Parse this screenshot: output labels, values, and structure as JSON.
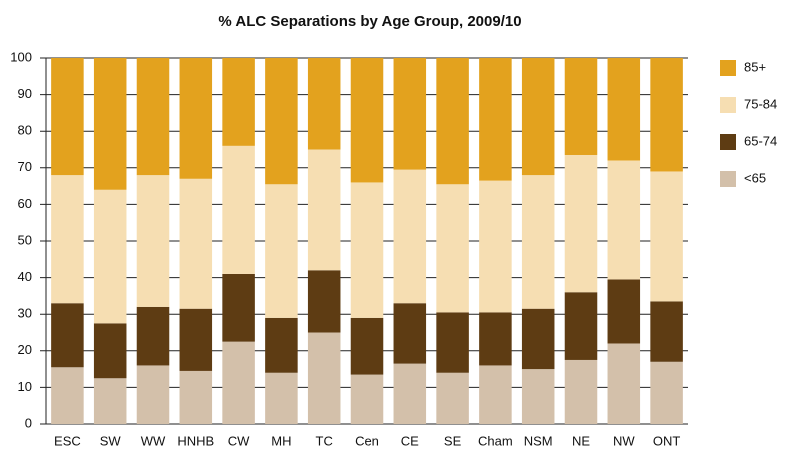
{
  "chart_data": {
    "type": "stacked_bar",
    "title": "% ALC Separations by Age Group, 2009/10",
    "categories": [
      "ESC",
      "SW",
      "WW",
      "HNHB",
      "CW",
      "MH",
      "TC",
      "Cen",
      "CE",
      "SE",
      "Cham",
      "NSM",
      "NE",
      "NW",
      "ONT"
    ],
    "series": [
      {
        "name": "<65",
        "color": "#d3c0aa",
        "values": [
          15.5,
          12.5,
          16,
          14.5,
          22.5,
          14,
          25,
          13.5,
          16.5,
          14,
          16,
          15,
          17.5,
          22,
          17
        ]
      },
      {
        "name": "65-74",
        "color": "#5e3c13",
        "values": [
          17.5,
          15,
          16,
          17,
          18.5,
          15,
          17,
          15.5,
          16.5,
          16.5,
          14.5,
          16.5,
          18.5,
          17.5,
          16.5
        ]
      },
      {
        "name": "75-84",
        "color": "#f6deb2",
        "values": [
          35,
          36.5,
          36,
          35.5,
          35,
          36.5,
          33,
          37,
          36.5,
          35,
          36,
          36.5,
          37.5,
          32.5,
          35.5
        ]
      },
      {
        "name": "85+",
        "color": "#e3a21e",
        "values": [
          32,
          36,
          32,
          33,
          24,
          34.5,
          25,
          34,
          30.5,
          34.5,
          33.5,
          32,
          26.5,
          28,
          31
        ]
      }
    ],
    "ylim": [
      0,
      100
    ],
    "yticks": [
      0,
      10,
      20,
      30,
      40,
      50,
      60,
      70,
      80,
      90,
      100
    ],
    "grid": true,
    "legend": "right"
  }
}
